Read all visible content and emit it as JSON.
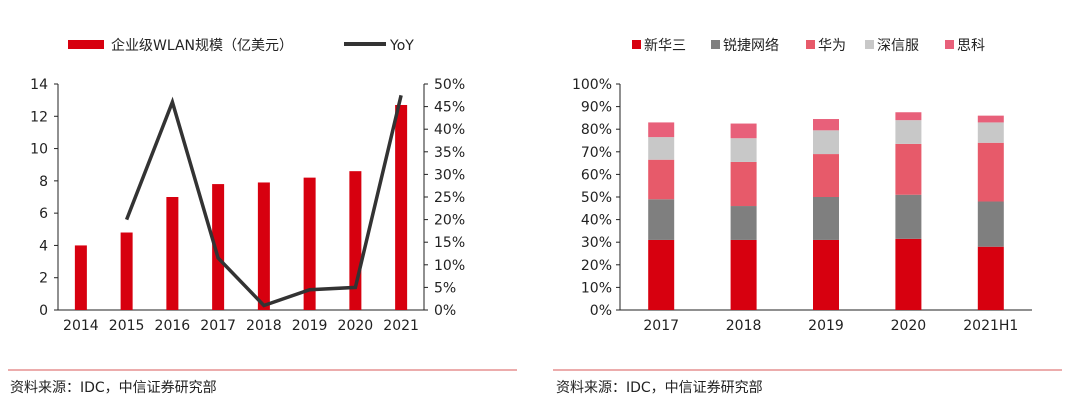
{
  "charts": {
    "left": {
      "type": "bar",
      "title": "",
      "legend": [
        "企业级WLAN规模（亿美元）",
        "YoY"
      ],
      "categories": [
        "2014",
        "2015",
        "2016",
        "2017",
        "2018",
        "2019",
        "2020",
        "2021"
      ],
      "ylim": [
        0,
        14
      ],
      "y_ticks": [
        "0",
        "2",
        "4",
        "6",
        "8",
        "10",
        "12",
        "14"
      ],
      "y2lim": [
        0,
        50
      ],
      "y2_ticks": [
        "0%",
        "5%",
        "10%",
        "15%",
        "20%",
        "25%",
        "30%",
        "35%",
        "40%",
        "45%",
        "50%"
      ],
      "series": [
        {
          "name": "企业级WLAN规模（亿美元）",
          "kind": "bar",
          "axis": "left",
          "color": "#d7000f",
          "values": [
            4.0,
            4.8,
            7.0,
            7.8,
            7.9,
            8.2,
            8.6,
            12.7
          ]
        },
        {
          "name": "YoY",
          "kind": "line",
          "axis": "right",
          "color": "#333333",
          "values": [
            null,
            20.0,
            46.0,
            11.5,
            1.0,
            4.5,
            5.0,
            47.5
          ]
        }
      ]
    },
    "right": {
      "type": "stacked-bar",
      "title": "",
      "legend": [
        "新华三",
        "锐捷网络",
        "华为",
        "深信服",
        "思科"
      ],
      "categories": [
        "2017",
        "2018",
        "2019",
        "2020",
        "2021H1"
      ],
      "ylim": [
        0,
        100
      ],
      "y_ticks": [
        "0%",
        "10%",
        "20%",
        "30%",
        "40%",
        "50%",
        "60%",
        "70%",
        "80%",
        "90%",
        "100%"
      ],
      "series": [
        {
          "name": "新华三",
          "color": "#d7000f",
          "values": [
            31,
            31,
            31,
            31.5,
            28
          ]
        },
        {
          "name": "锐捷网络",
          "color": "#7f7f7f",
          "values": [
            18,
            15,
            19,
            19.5,
            20
          ]
        },
        {
          "name": "华为",
          "color": "#e75a6a",
          "values": [
            17.5,
            19.5,
            19,
            22.5,
            26
          ]
        },
        {
          "name": "深信服",
          "color": "#c8c8c8",
          "values": [
            10,
            10.5,
            10.5,
            10.5,
            9
          ]
        },
        {
          "name": "思科",
          "color": "#e8607a",
          "values": [
            6.5,
            6.5,
            5,
            3.5,
            3
          ]
        }
      ]
    }
  },
  "chart_data": [
    {
      "type": "bar",
      "title": "",
      "categories": [
        "2014",
        "2015",
        "2016",
        "2017",
        "2018",
        "2019",
        "2020",
        "2021"
      ],
      "series": [
        {
          "name": "企业级WLAN规模（亿美元）",
          "values": [
            4.0,
            4.8,
            7.0,
            7.8,
            7.9,
            8.2,
            8.6,
            12.7
          ]
        },
        {
          "name": "YoY",
          "values": [
            null,
            20.0,
            46.0,
            11.5,
            1.0,
            4.5,
            5.0,
            47.5
          ]
        }
      ],
      "xlabel": "",
      "ylabel": "",
      "ylim": [
        0,
        14
      ],
      "y2lim": [
        0,
        50
      ]
    },
    {
      "type": "bar",
      "stacked": true,
      "title": "",
      "categories": [
        "2017",
        "2018",
        "2019",
        "2020",
        "2021H1"
      ],
      "series": [
        {
          "name": "新华三",
          "values": [
            31,
            31,
            31,
            31.5,
            28
          ]
        },
        {
          "name": "锐捷网络",
          "values": [
            18,
            15,
            19,
            19.5,
            20
          ]
        },
        {
          "name": "华为",
          "values": [
            17.5,
            19.5,
            19,
            22.5,
            26
          ]
        },
        {
          "name": "深信服",
          "values": [
            10,
            10.5,
            10.5,
            10.5,
            9
          ]
        },
        {
          "name": "思科",
          "values": [
            6.5,
            6.5,
            5,
            3.5,
            3
          ]
        }
      ],
      "xlabel": "",
      "ylabel": "",
      "ylim": [
        0,
        100
      ]
    }
  ],
  "source": {
    "left": "资料来源：IDC，中信证券研究部",
    "right": "资料来源：IDC，中信证券研究部"
  },
  "colors": {
    "divider": "#e07a7a",
    "axis": "#222222"
  }
}
